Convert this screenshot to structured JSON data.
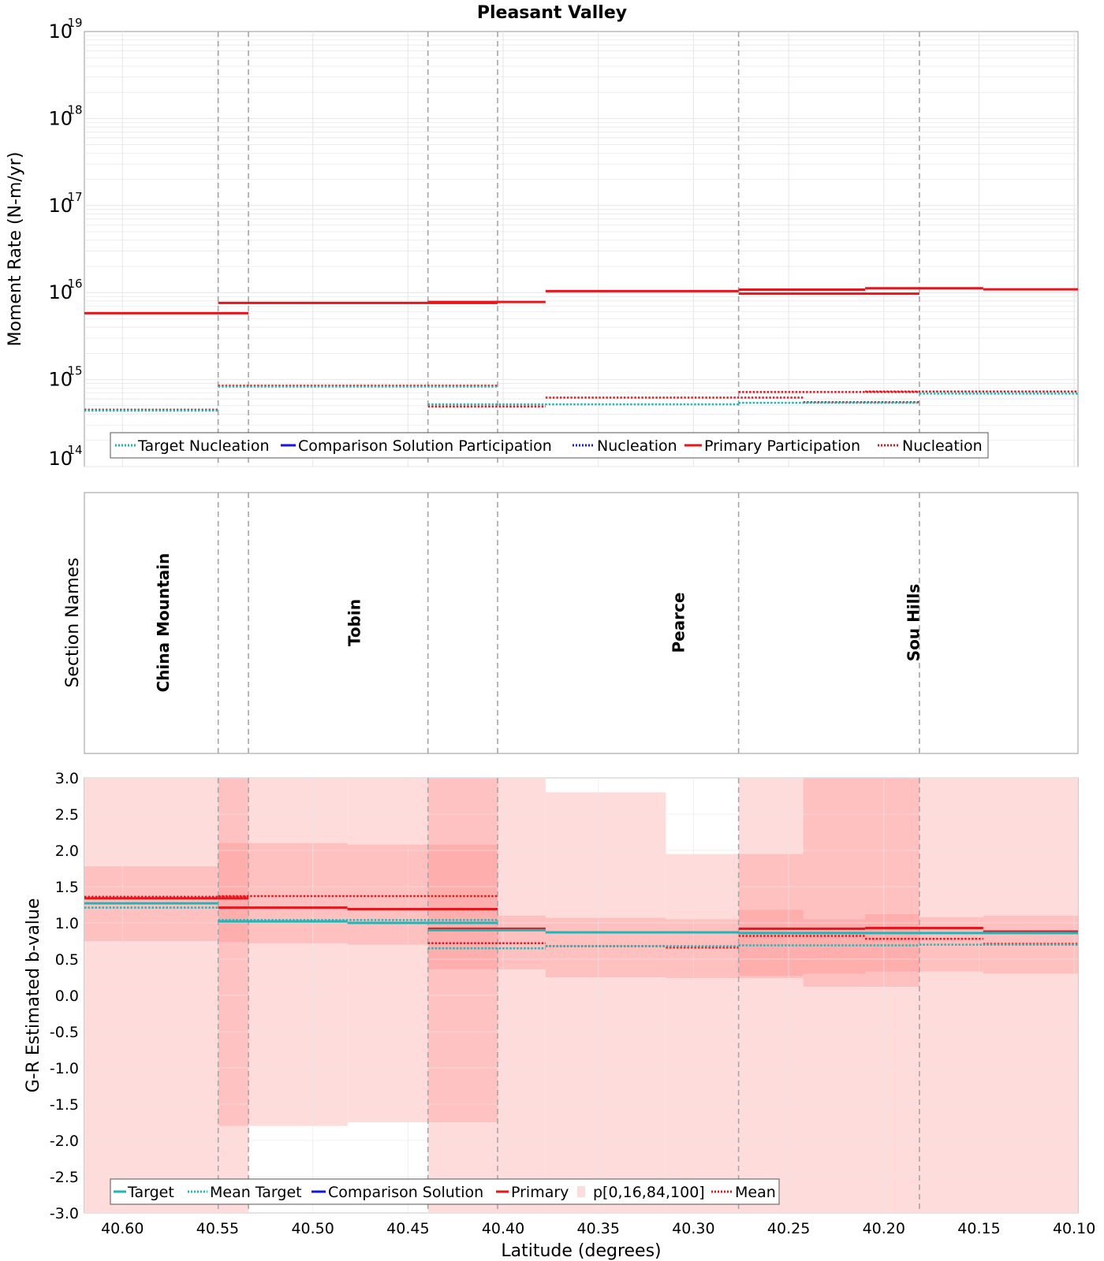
{
  "title": "Pleasant Valley",
  "xaxis": {
    "label": "Latitude (degrees)",
    "lim": [
      40.62,
      40.098
    ],
    "ticks": [
      "40.60",
      "40.55",
      "40.50",
      "40.45",
      "40.40",
      "40.35",
      "40.30",
      "40.25",
      "40.20",
      "40.15",
      "40.10"
    ],
    "tick_values": [
      40.6,
      40.55,
      40.5,
      40.45,
      40.4,
      40.35,
      40.3,
      40.25,
      40.2,
      40.15,
      40.1
    ]
  },
  "section_boundaries": [
    40.5497,
    40.5338,
    40.4395,
    40.4029,
    40.2763,
    40.1813
  ],
  "colors": {
    "target": "#22b5b5",
    "comparison": "#1515e6",
    "primary": "#e6161c",
    "band_light": "#ffdcdc",
    "band_dark": "#ff9e9e",
    "grid": "#e6e6e6",
    "boundary": "#a6a6a6"
  },
  "chart_data": [
    {
      "type": "line",
      "name": "moment-rate",
      "ylabel": "Moment Rate (N-m/yr)",
      "yscale": "log",
      "ylim_exp": [
        14,
        19
      ],
      "ytick_labels": [
        {
          "base": "10",
          "exp": "14"
        },
        {
          "base": "10",
          "exp": "15"
        },
        {
          "base": "10",
          "exp": "16"
        },
        {
          "base": "10",
          "exp": "17"
        },
        {
          "base": "10",
          "exp": "18"
        },
        {
          "base": "10",
          "exp": "19"
        }
      ],
      "legend": [
        "Target Nucleation",
        "Comparison Solution Participation",
        "Nucleation",
        "Primary Participation",
        "Nucleation"
      ],
      "legend_position": "lower-left",
      "series": [
        {
          "name": "Primary Participation",
          "style": "solid",
          "color": "primary",
          "steps": [
            [
              40.62,
              40.5338,
              5800000000000000.0
            ],
            [
              40.5497,
              40.4029,
              7600000000000000.0
            ],
            [
              40.4395,
              40.3777,
              7800000000000000.0
            ],
            [
              40.3777,
              40.2763,
              1.04e+16
            ],
            [
              40.2763,
              40.1813,
              9700000000000000.0
            ],
            [
              40.2763,
              40.2098,
              1.08e+16
            ],
            [
              40.2098,
              40.1478,
              1.12e+16
            ],
            [
              40.1478,
              40.098,
              1.09e+16
            ]
          ]
        },
        {
          "name": "Nucleation",
          "style": "dotted",
          "color": "primary",
          "steps": [
            [
              40.62,
              40.5497,
              450000000000000.0
            ],
            [
              40.5497,
              40.4029,
              850000000000000.0
            ],
            [
              40.4395,
              40.3777,
              490000000000000.0
            ],
            [
              40.3777,
              40.2423,
              620000000000000.0
            ],
            [
              40.2763,
              40.1813,
              720000000000000.0
            ],
            [
              40.2423,
              40.1813,
              550000000000000.0
            ],
            [
              40.2098,
              40.098,
              730000000000000.0
            ]
          ]
        },
        {
          "name": "Target Nucleation",
          "style": "dotted",
          "color": "target",
          "steps": [
            [
              40.62,
              40.5497,
              440000000000000.0
            ],
            [
              40.5497,
              40.4029,
              830000000000000.0
            ],
            [
              40.4395,
              40.2763,
              520000000000000.0
            ],
            [
              40.2763,
              40.1813,
              540000000000000.0
            ],
            [
              40.1813,
              40.098,
              690000000000000.0
            ]
          ]
        }
      ]
    },
    {
      "type": "table",
      "name": "section-names",
      "ylabel": "Section Names",
      "sections": [
        {
          "name": "China Mountain",
          "center": 40.5785
        },
        {
          "name": "Tobin",
          "center": 40.4782
        },
        {
          "name": "Pearce",
          "center": 40.3079
        },
        {
          "name": "Sou Hills",
          "center": 40.1844
        }
      ]
    },
    {
      "type": "line",
      "name": "b-value",
      "ylabel": "G-R Estimated b-value",
      "ylim": [
        -3.0,
        3.0
      ],
      "ytick_labels": [
        "3.0",
        "2.5",
        "2.0",
        "1.5",
        "1.0",
        "0.5",
        "0.0",
        "-0.5",
        "-1.0",
        "-1.5",
        "-2.0",
        "-2.5",
        "-3.0"
      ],
      "ytick_values": [
        3.0,
        2.5,
        2.0,
        1.5,
        1.0,
        0.5,
        0.0,
        -0.5,
        -1.0,
        -1.5,
        -2.0,
        -2.5,
        -3.0
      ],
      "legend": [
        "Target",
        "Mean Target",
        "Comparison Solution",
        "Primary",
        "p[0,16,84,100]",
        "Mean"
      ],
      "legend_position": "lower-left",
      "bands_outer": [
        [
          40.62,
          40.5338,
          -3.0,
          3.0
        ],
        [
          40.5338,
          40.4818,
          -1.8,
          3.0
        ],
        [
          40.4818,
          40.4395,
          -1.75,
          3.0
        ],
        [
          40.4395,
          40.3777,
          -3.0,
          3.0
        ],
        [
          40.3777,
          40.3145,
          -3.0,
          2.8
        ],
        [
          40.3145,
          40.2763,
          -3.0,
          1.95
        ],
        [
          40.2763,
          40.098,
          -3.0,
          3.0
        ]
      ],
      "bands_inner": [
        [
          40.62,
          40.5497,
          0.75,
          1.78
        ],
        [
          40.5497,
          40.5338,
          0.74,
          2.1
        ],
        [
          40.5338,
          40.4818,
          0.72,
          2.1
        ],
        [
          40.4818,
          40.4395,
          0.7,
          2.08
        ],
        [
          40.4395,
          40.4029,
          0.36,
          2.08
        ],
        [
          40.4029,
          40.3777,
          0.36,
          1.1
        ],
        [
          40.3777,
          40.3145,
          0.25,
          1.07
        ],
        [
          40.3145,
          40.2763,
          0.24,
          1.05
        ],
        [
          40.2763,
          40.2423,
          0.24,
          1.95
        ],
        [
          40.2423,
          40.2098,
          0.12,
          3.0
        ],
        [
          40.2098,
          40.1813,
          0.12,
          3.0
        ],
        [
          40.1813,
          40.1478,
          0.33,
          1.08
        ],
        [
          40.1478,
          40.098,
          0.3,
          1.1
        ]
      ],
      "bands_overlap": [
        [
          40.5497,
          40.5338,
          -1.8,
          3.0
        ],
        [
          40.4395,
          40.4029,
          -1.75,
          3.0
        ],
        [
          40.2763,
          40.2423,
          0.27,
          1.18
        ],
        [
          40.2423,
          40.2098,
          0.3,
          1.05
        ],
        [
          40.2098,
          40.1813,
          0.33,
          1.12
        ]
      ],
      "series": [
        {
          "name": "Primary",
          "style": "solid",
          "color": "primary",
          "steps": [
            [
              40.62,
              40.5338,
              1.34
            ],
            [
              40.5497,
              40.4818,
              1.21
            ],
            [
              40.4818,
              40.4029,
              1.19
            ],
            [
              40.4395,
              40.3777,
              0.92
            ],
            [
              40.3777,
              40.2763,
              0.87
            ],
            [
              40.2763,
              40.2098,
              0.92
            ],
            [
              40.2098,
              40.1478,
              0.93
            ],
            [
              40.1478,
              40.098,
              0.88
            ]
          ]
        },
        {
          "name": "Mean",
          "style": "dotted",
          "color": "primary",
          "steps": [
            [
              40.62,
              40.5338,
              1.36
            ],
            [
              40.5497,
              40.4029,
              1.37
            ],
            [
              40.4395,
              40.3777,
              0.72
            ],
            [
              40.3777,
              40.3145,
              0.68
            ],
            [
              40.3145,
              40.2763,
              0.66
            ],
            [
              40.2763,
              40.2098,
              0.82
            ],
            [
              40.2098,
              40.1478,
              0.78
            ],
            [
              40.1478,
              40.098,
              0.71
            ]
          ]
        },
        {
          "name": "Target",
          "style": "solid",
          "color": "target",
          "steps": [
            [
              40.62,
              40.5497,
              1.27
            ],
            [
              40.5497,
              40.4818,
              1.02
            ],
            [
              40.4818,
              40.4029,
              1.0
            ],
            [
              40.4395,
              40.3777,
              0.9
            ],
            [
              40.3777,
              40.2763,
              0.87
            ],
            [
              40.2763,
              40.1813,
              0.86
            ],
            [
              40.1813,
              40.098,
              0.86
            ]
          ]
        },
        {
          "name": "Mean Target",
          "style": "dotted",
          "color": "target",
          "steps": [
            [
              40.62,
              40.5497,
              1.21
            ],
            [
              40.5497,
              40.4029,
              1.04
            ],
            [
              40.4395,
              40.3777,
              0.65
            ],
            [
              40.3777,
              40.2763,
              0.68
            ],
            [
              40.2763,
              40.1813,
              0.69
            ],
            [
              40.1813,
              40.098,
              0.7
            ]
          ]
        }
      ]
    }
  ]
}
